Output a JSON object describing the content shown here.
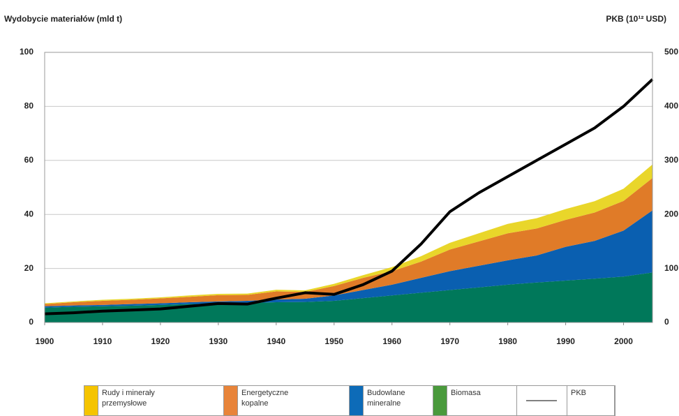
{
  "chart_data": {
    "type": "stacked_area",
    "y_label": "Wydobycie materiałów (mld t)",
    "y2_label": "PKB (10¹² USD)",
    "x": [
      1900,
      1905,
      1910,
      1915,
      1920,
      1925,
      1930,
      1935,
      1940,
      1945,
      1950,
      1955,
      1960,
      1965,
      1970,
      1975,
      1980,
      1985,
      1990,
      1995,
      2000,
      2005
    ],
    "xlim": [
      1900,
      2005
    ],
    "xticks": [
      1900,
      1910,
      1920,
      1930,
      1940,
      1950,
      1960,
      1970,
      1980,
      1990,
      2000
    ],
    "ylim": [
      0,
      100
    ],
    "yticks": [
      0,
      20,
      40,
      60,
      80,
      100
    ],
    "y2lim": [
      0,
      500
    ],
    "y2ticks": [
      0,
      100,
      200,
      300,
      400,
      500
    ],
    "grid": true,
    "legend": "bottom",
    "series": [
      {
        "name": "Rudy i minerały przemysłowe",
        "color": "#e9d62a",
        "legend_color": "#f5c400",
        "values": [
          0.3,
          0.3,
          0.4,
          0.4,
          0.4,
          0.5,
          0.5,
          0.5,
          0.6,
          0.6,
          0.8,
          1.0,
          1.5,
          2.0,
          2.5,
          3.0,
          3.5,
          3.8,
          4.0,
          4.2,
          4.5,
          5.0
        ]
      },
      {
        "name": "Energetyczne kopalne",
        "color": "#e07b28",
        "legend_color": "#e8843a",
        "values": [
          0.8,
          1.2,
          1.5,
          1.6,
          1.8,
          2.0,
          2.3,
          2.2,
          3.0,
          2.5,
          3.5,
          4.5,
          5.0,
          6.0,
          8.0,
          9.0,
          10.0,
          10.0,
          10.0,
          10.5,
          11.0,
          12.0
        ]
      },
      {
        "name": "Budowlane mineralne",
        "color": "#0a5fb0",
        "legend_color": "#0d6bb8",
        "values": [
          0.5,
          0.5,
          0.5,
          0.6,
          0.6,
          0.7,
          0.8,
          0.8,
          1.0,
          1.2,
          2.0,
          3.0,
          4.0,
          5.5,
          7.0,
          8.0,
          9.0,
          10.0,
          12.5,
          14.0,
          17.0,
          23.0
        ]
      },
      {
        "name": "Biomasa",
        "color": "#00785a",
        "legend_color": "#4a9a3c",
        "values": [
          5.5,
          5.8,
          6.0,
          6.2,
          6.5,
          6.8,
          7.0,
          7.2,
          7.5,
          7.6,
          8.0,
          9.0,
          10.0,
          11.0,
          12.0,
          13.0,
          14.0,
          14.8,
          15.5,
          16.2,
          17.0,
          18.5
        ]
      },
      {
        "name": "PKB",
        "color": "#000000",
        "axis": "y2",
        "line": true,
        "values": [
          16,
          18,
          21,
          23,
          25,
          30,
          35,
          34,
          45,
          55,
          52,
          70,
          95,
          145,
          205,
          240,
          270,
          300,
          330,
          360,
          400,
          450
        ]
      }
    ]
  }
}
